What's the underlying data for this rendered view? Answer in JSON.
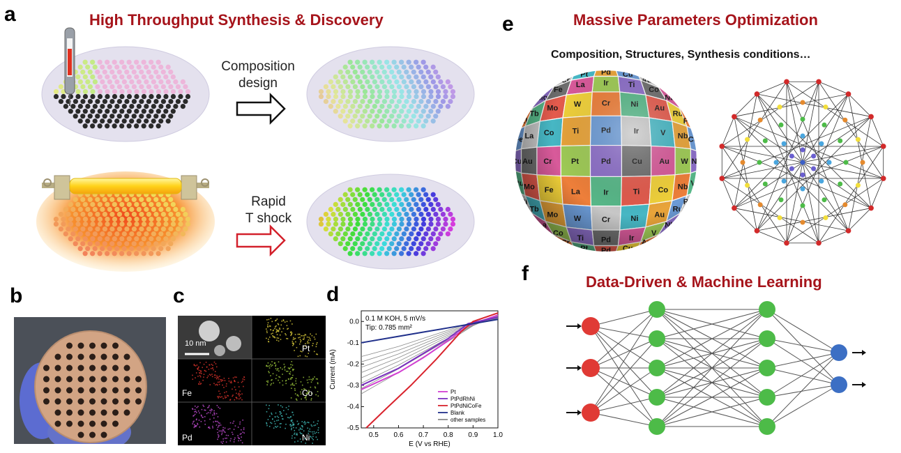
{
  "panel_labels": {
    "a": "a",
    "b": "b",
    "c": "c",
    "d": "d",
    "e": "e",
    "f": "f"
  },
  "titles": {
    "a": "High Throughput Synthesis & Discovery",
    "e": "Massive Parameters Optimization",
    "e_sub": "Composition, Structures, Synthesis conditions…",
    "f": "Data-Driven & Machine Learning"
  },
  "arrows": {
    "composition_line1": "Composition",
    "composition_line2": "design",
    "rapid_line1": "Rapid",
    "rapid_line2": "T shock"
  },
  "colors": {
    "title": "#a6141b",
    "input_node": "#e03a35",
    "hidden_node": "#4dbb48",
    "output_node": "#3c6fc4"
  },
  "panel_c": {
    "scale": "10 nm",
    "elements": [
      "Pt",
      "Fe",
      "Co",
      "Pd",
      "Ni"
    ],
    "element_colors": {
      "Pt": "#d6c73a",
      "Fe": "#d7332a",
      "Co": "#97c13a",
      "Pd": "#c04bd0",
      "Ni": "#3fb7b5"
    }
  },
  "sphere_elements": [
    "Cu",
    "Au",
    "Cr",
    "Pt",
    "Pd",
    "Cu",
    "Au",
    "W",
    "Ni",
    "Ru",
    "Mo",
    "Fe",
    "La",
    "Ir",
    "Ti",
    "Co",
    "Nb",
    "V",
    "Rh",
    "Tb",
    "Mo",
    "W",
    "Cr",
    "Ni",
    "Au",
    "Ru",
    "Pt",
    "Fe",
    "La",
    "Co",
    "Ti",
    "Pd",
    "Ir",
    "V",
    "Nb",
    "Cu"
  ],
  "chart_data": {
    "type": "line",
    "title": "",
    "annotations": [
      "0.1 M KOH, 5 mV/s",
      "Tip: 0.785 mm²"
    ],
    "xlabel": "E (V vs RHE)",
    "ylabel": "Current (mA)",
    "xlim": [
      0.45,
      1.0
    ],
    "ylim": [
      -0.5,
      0.05
    ],
    "xticks": [
      0.5,
      0.6,
      0.7,
      0.8,
      0.9,
      1.0
    ],
    "yticks": [
      -0.5,
      -0.4,
      -0.3,
      -0.2,
      -0.1,
      0.0
    ],
    "xtick_labels": [
      "0.5",
      "0.6",
      "0.7",
      "0.8",
      "0.9",
      "1.0"
    ],
    "ytick_labels": [
      "-0.5",
      "-0.4",
      "-0.3",
      "-0.2",
      "-0.1",
      "0.0"
    ],
    "legend_position": "bottom-right",
    "series": [
      {
        "name": "Pt",
        "color": "#d23fd2",
        "x": [
          0.45,
          0.6,
          0.7,
          0.8,
          0.88,
          1.0
        ],
        "y": [
          -0.32,
          -0.24,
          -0.17,
          -0.09,
          -0.02,
          0.03
        ]
      },
      {
        "name": "PtPdRhNi",
        "color": "#7a2fc0",
        "x": [
          0.45,
          0.6,
          0.7,
          0.8,
          0.88,
          1.0
        ],
        "y": [
          -0.3,
          -0.22,
          -0.15,
          -0.08,
          -0.01,
          0.02
        ]
      },
      {
        "name": "PtPdNiCoFe",
        "color": "#d9232d",
        "x": [
          0.47,
          0.55,
          0.65,
          0.75,
          0.85,
          0.9,
          1.0
        ],
        "y": [
          -0.5,
          -0.41,
          -0.3,
          -0.18,
          -0.05,
          0.0,
          0.04
        ]
      },
      {
        "name": "Blank",
        "color": "#1f2f8a",
        "x": [
          0.45,
          0.6,
          0.7,
          0.8,
          0.9,
          1.0
        ],
        "y": [
          -0.1,
          -0.07,
          -0.05,
          -0.03,
          -0.01,
          0.01
        ]
      },
      {
        "name": "other samples",
        "color": "#8a8a8a",
        "x": [
          0.45,
          0.6,
          0.75,
          0.9,
          1.0
        ],
        "y": [
          -0.24,
          -0.17,
          -0.09,
          -0.01,
          0.02
        ]
      }
    ]
  }
}
